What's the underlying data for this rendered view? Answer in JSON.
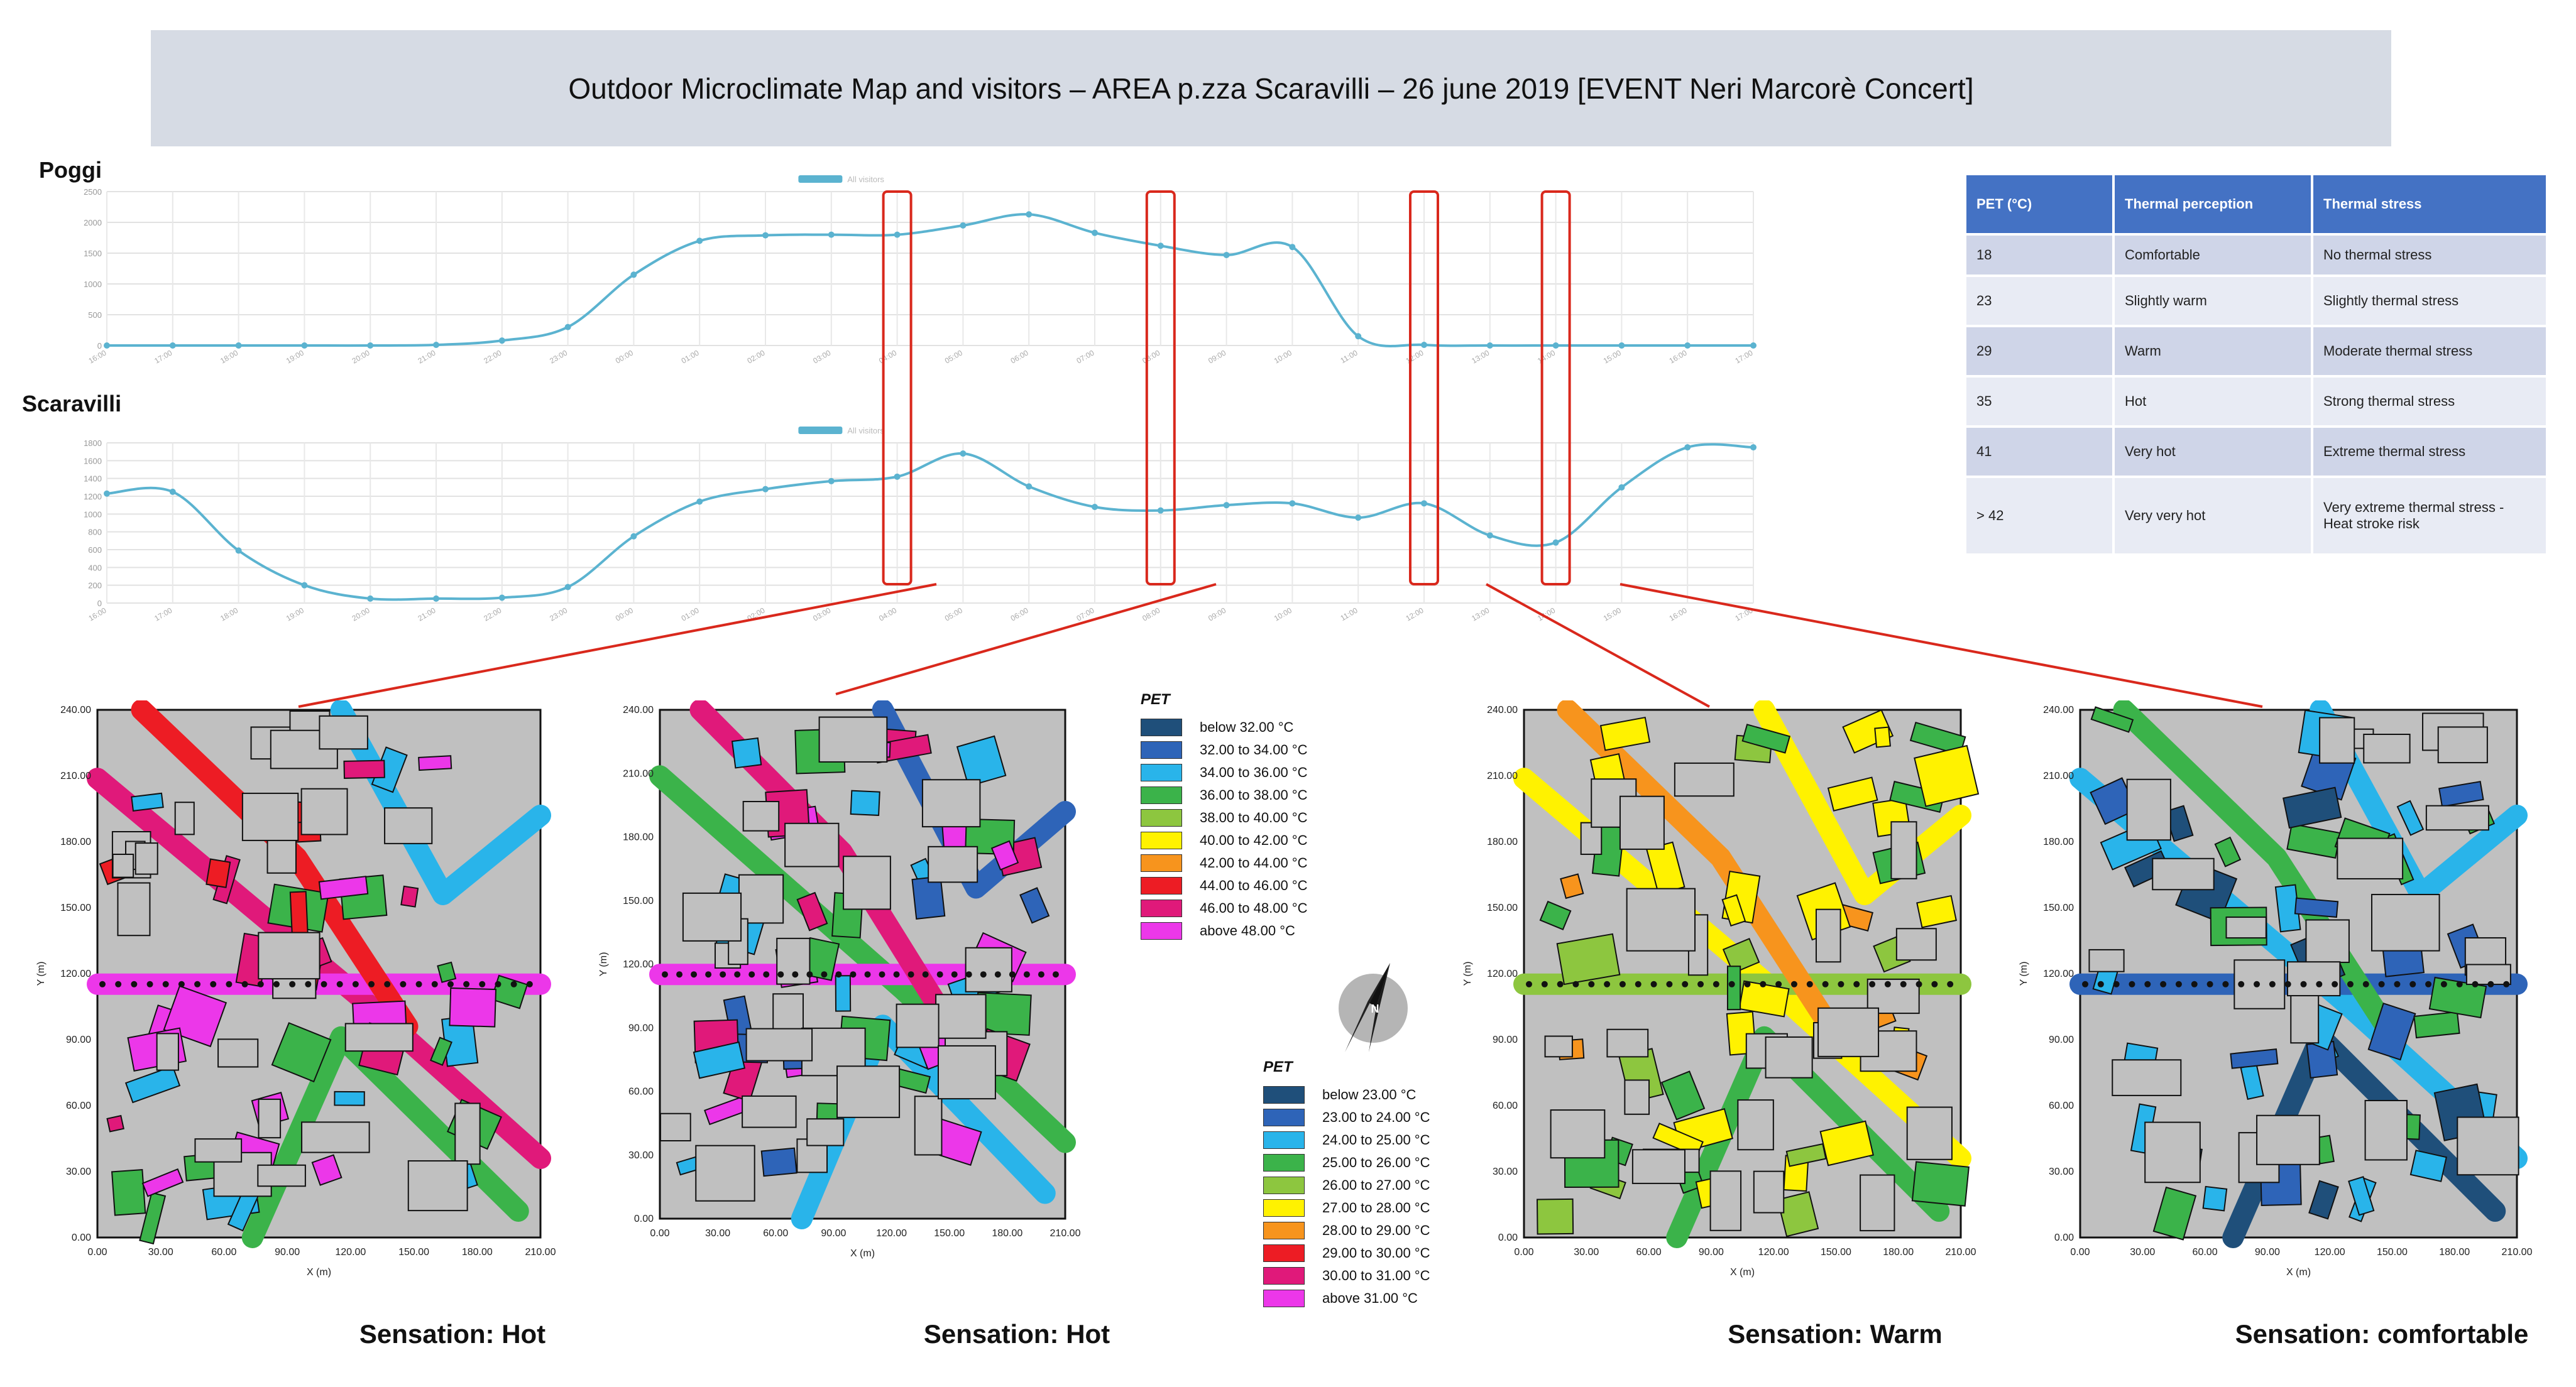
{
  "title": "Outdoor Microclimate Map and visitors – AREA p.zza Scaravilli – 26 june 2019 [EVENT Neri Marcorè Concert]",
  "colors": {
    "line": "#5bb3d0",
    "highlight": "#d9281c",
    "banner": "#d6dbe4",
    "table_header": "#4472c4",
    "building": "#c0c0c0"
  },
  "chart_data": [
    {
      "type": "line",
      "title": "Poggi",
      "legend": "All visitors",
      "ylim": [
        0,
        2500
      ],
      "yticks": [
        0,
        500,
        1000,
        1500,
        2000,
        2500
      ],
      "x": [
        "16:00",
        "17:00",
        "18:00",
        "19:00",
        "20:00",
        "21:00",
        "22:00",
        "23:00",
        "00:00",
        "01:00",
        "02:00",
        "03:00",
        "04:00",
        "05:00",
        "06:00",
        "07:00",
        "08:00",
        "09:00",
        "10:00",
        "11:00",
        "12:00",
        "13:00",
        "14:00",
        "15:00",
        "16:00",
        "17:00"
      ],
      "values": [
        0,
        0,
        0,
        0,
        0,
        10,
        80,
        300,
        1150,
        1700,
        1790,
        1800,
        1800,
        1950,
        2130,
        1830,
        1620,
        1470,
        1600,
        150,
        10,
        0,
        0,
        0,
        0,
        0
      ],
      "highlight_index": [
        12,
        16,
        20,
        22
      ]
    },
    {
      "type": "line",
      "title": "Scaravilli",
      "legend": "All visitors",
      "ylim": [
        0,
        1800
      ],
      "yticks": [
        0,
        200,
        400,
        600,
        800,
        1000,
        1200,
        1400,
        1600,
        1800
      ],
      "x": [
        "16:00",
        "17:00",
        "18:00",
        "19:00",
        "20:00",
        "21:00",
        "22:00",
        "23:00",
        "00:00",
        "01:00",
        "02:00",
        "03:00",
        "04:00",
        "05:00",
        "06:00",
        "07:00",
        "08:00",
        "09:00",
        "10:00",
        "11:00",
        "12:00",
        "13:00",
        "14:00",
        "15:00",
        "16:00",
        "17:00"
      ],
      "values": [
        1230,
        1250,
        590,
        200,
        50,
        50,
        60,
        180,
        750,
        1140,
        1280,
        1370,
        1420,
        1680,
        1310,
        1080,
        1040,
        1100,
        1120,
        960,
        1120,
        760,
        680,
        1300,
        1750,
        1750
      ],
      "highlight_index": [
        12,
        16,
        20,
        22
      ]
    }
  ],
  "legend_hot": {
    "title": "PET",
    "items": [
      {
        "label": "below 32.00 °C",
        "color": "#1f4f7a"
      },
      {
        "label": "32.00 to 34.00 °C",
        "color": "#2e64b8"
      },
      {
        "label": "34.00 to 36.00 °C",
        "color": "#29b4ea"
      },
      {
        "label": "36.00 to 38.00 °C",
        "color": "#3bb34a"
      },
      {
        "label": "38.00 to 40.00 °C",
        "color": "#8dc63f"
      },
      {
        "label": "40.00 to 42.00 °C",
        "color": "#fff200"
      },
      {
        "label": "42.00 to 44.00 °C",
        "color": "#f7941d"
      },
      {
        "label": "44.00 to 46.00 °C",
        "color": "#ed1c24"
      },
      {
        "label": "46.00 to 48.00 °C",
        "color": "#e0197a"
      },
      {
        "label": "above 48.00 °C",
        "color": "#ec37e9"
      }
    ]
  },
  "legend_cool": {
    "title": "PET",
    "items": [
      {
        "label": "below 23.00 °C",
        "color": "#1f4f7a"
      },
      {
        "label": "23.00 to 24.00 °C",
        "color": "#2e64b8"
      },
      {
        "label": "24.00 to 25.00 °C",
        "color": "#29b4ea"
      },
      {
        "label": "25.00 to 26.00 °C",
        "color": "#3bb34a"
      },
      {
        "label": "26.00 to 27.00 °C",
        "color": "#8dc63f"
      },
      {
        "label": "27.00 to 28.00 °C",
        "color": "#fff200"
      },
      {
        "label": "28.00 to 29.00 °C",
        "color": "#f7941d"
      },
      {
        "label": "29.00 to 30.00 °C",
        "color": "#ed1c24"
      },
      {
        "label": "30.00 to 31.00 °C",
        "color": "#e0197a"
      },
      {
        "label": "above 31.00 °C",
        "color": "#ec37e9"
      }
    ]
  },
  "pet_table": {
    "headers": [
      "PET (°C)",
      "Thermal perception",
      "Thermal stress"
    ],
    "rows": [
      [
        "18",
        "Comfortable",
        "No thermal stress"
      ],
      [
        "23",
        "Slightly warm",
        "Slightly thermal stress"
      ],
      [
        "29",
        "Warm",
        "Moderate thermal stress"
      ],
      [
        "35",
        "Hot",
        "Strong thermal stress"
      ],
      [
        "41",
        "Very hot",
        "Extreme thermal stress"
      ],
      [
        "> 42",
        "Very very hot",
        "Very extreme thermal stress - Heat stroke risk"
      ]
    ]
  },
  "maps": [
    {
      "sensation": "Sensation: Hot",
      "palette": [
        "#e0197a",
        "#ec37e9",
        "#3bb34a",
        "#ed1c24",
        "#29b4ea"
      ]
    },
    {
      "sensation": "Sensation: Hot",
      "palette": [
        "#3bb34a",
        "#ec37e9",
        "#29b4ea",
        "#e0197a",
        "#2e64b8"
      ]
    },
    {
      "sensation": "Sensation: Warm",
      "palette": [
        "#fff200",
        "#8dc63f",
        "#3bb34a",
        "#f7941d",
        "#fff200"
      ]
    },
    {
      "sensation": "Sensation: comfortable",
      "palette": [
        "#29b4ea",
        "#2e64b8",
        "#1f4f7a",
        "#3bb34a",
        "#29b4ea"
      ]
    }
  ],
  "map_axes": {
    "xlabel": "X (m)",
    "ylabel": "Y (m)",
    "xticks": [
      "0.00",
      "30.00",
      "60.00",
      "90.00",
      "120.00",
      "150.00",
      "180.00",
      "210.00"
    ],
    "yticks": [
      "0.00",
      "30.00",
      "60.00",
      "90.00",
      "120.00",
      "150.00",
      "180.00",
      "210.00",
      "240.00"
    ]
  },
  "compass": {
    "letter": "N"
  }
}
